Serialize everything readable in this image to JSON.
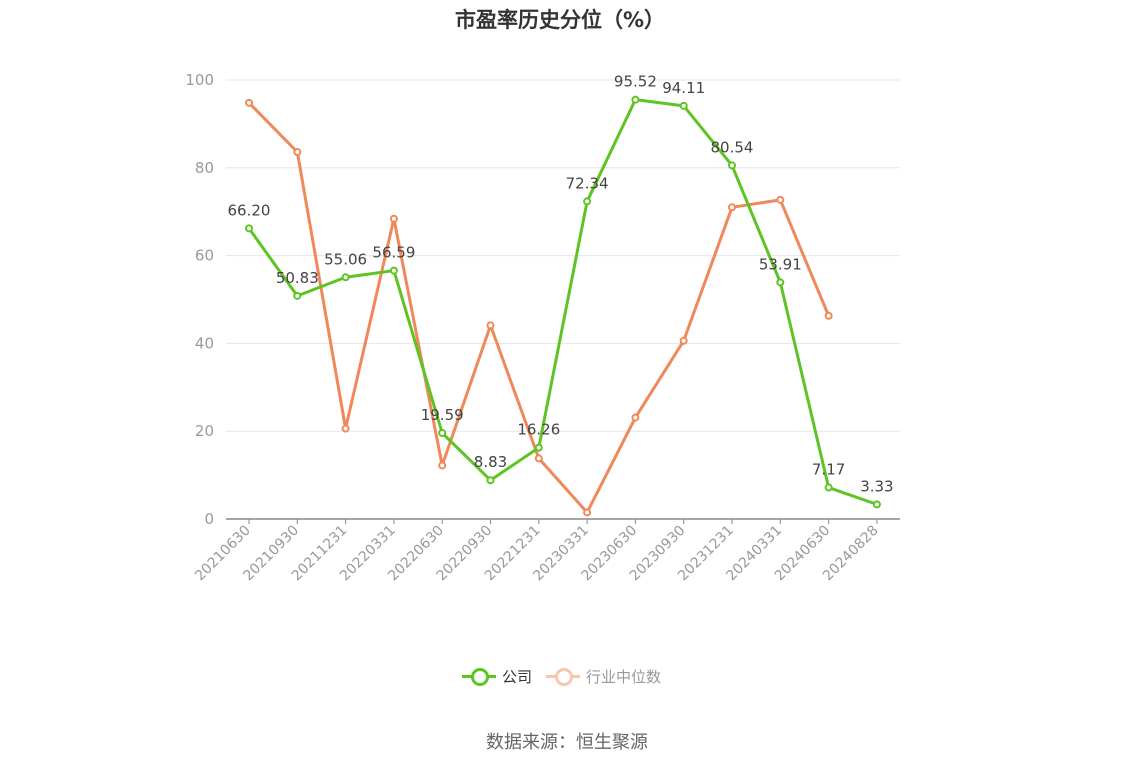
{
  "title": "市盈率历史分位（%）",
  "source": "数据来源：恒生聚源",
  "colors": {
    "company": "#5ec423",
    "industry": "#f0885a",
    "grid": "#e6e6ea",
    "axis": "#888888",
    "tick_text": "#999999",
    "label_text": "#444444"
  },
  "chart_data": {
    "type": "line",
    "categories": [
      "20210630",
      "20210930",
      "20211231",
      "20220331",
      "20220630",
      "20220930",
      "20221231",
      "20230331",
      "20230630",
      "20230930",
      "20231231",
      "20240331",
      "20240630",
      "20240828"
    ],
    "ylim": [
      0,
      100
    ],
    "yticks": [
      0,
      20,
      40,
      60,
      80,
      100
    ],
    "grid": true,
    "legend_position": "bottom",
    "series": [
      {
        "name": "公司",
        "color": "#5ec423",
        "show_labels": true,
        "values": [
          66.2,
          50.83,
          55.06,
          56.59,
          19.59,
          8.83,
          16.26,
          72.34,
          95.52,
          94.11,
          80.54,
          53.91,
          7.17,
          3.33
        ],
        "labels": [
          "66.20",
          "50.83",
          "55.06",
          "56.59",
          "19.59",
          "8.83",
          "16.26",
          "72.34",
          "95.52",
          "94.11",
          "80.54",
          "53.91",
          "7.17",
          "3.33"
        ]
      },
      {
        "name": "行业中位数",
        "color": "#f0885a",
        "show_labels": false,
        "values": [
          94.8,
          83.6,
          20.6,
          68.4,
          12.2,
          44.1,
          13.8,
          1.5,
          23.1,
          40.6,
          71.0,
          72.7,
          46.3,
          null
        ]
      }
    ]
  }
}
